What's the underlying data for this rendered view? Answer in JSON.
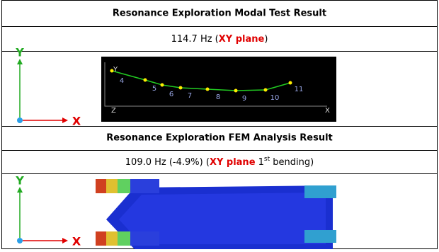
{
  "sections": [
    {
      "title": "Resonance Exploration Modal Test Result",
      "result": {
        "parts": [
          "114.7 Hz (",
          "XY plane",
          ")"
        ]
      },
      "axis_labels": {
        "y": "Y",
        "x": "X"
      },
      "plot": {
        "corner_y": "Y",
        "z": "Z",
        "x": "X",
        "point_labels": [
          "4",
          "5",
          "6",
          "7",
          "8",
          "9",
          "10",
          "11"
        ]
      }
    },
    {
      "title": "Resonance Exploration FEM Analysis Result",
      "result": {
        "parts": [
          "109.0 Hz (-4.9%) (",
          "XY plane",
          " 1",
          "st",
          " bending)"
        ]
      },
      "axis_labels": {
        "y": "Y",
        "x": "X"
      }
    }
  ]
}
